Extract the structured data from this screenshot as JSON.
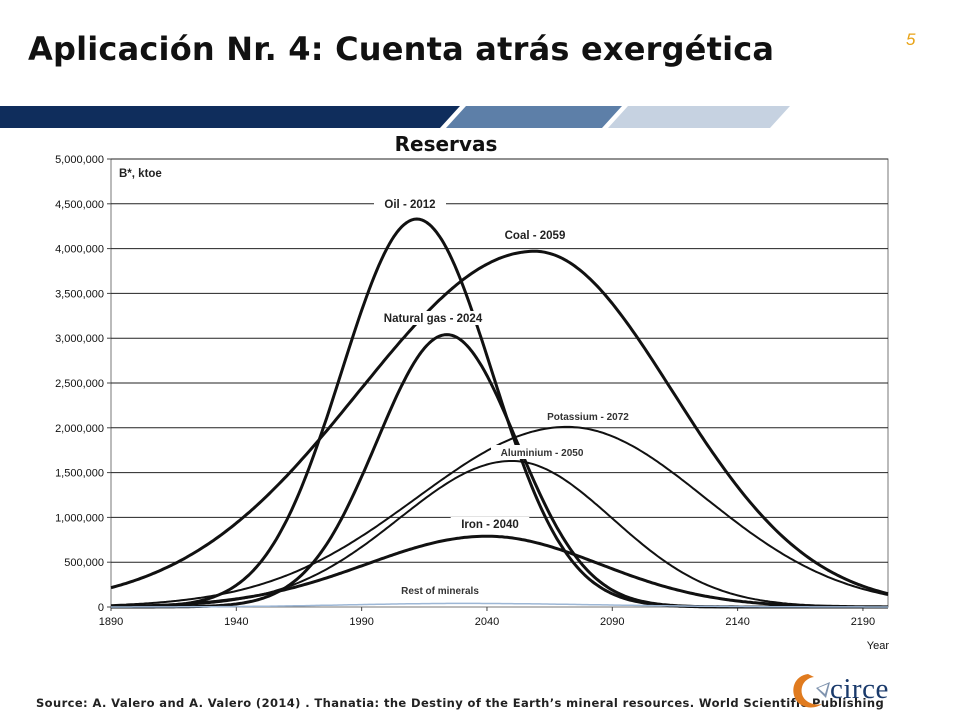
{
  "slide": {
    "title": "Aplicación Nr. 4: Cuenta atrás exergética",
    "page_number": "5",
    "source": "Source: A. Valero and A. Valero (2014) . Thanatia: the Destiny of the Earth’s mineral resources. World Scientific Publishing",
    "logo_text": "circe"
  },
  "colors": {
    "banner_dark": "#0f2d5c",
    "banner_mid": "#5d7fa8",
    "banner_light": "#c6d2e1",
    "accent": "#e8a317",
    "logo_orange": "#e07b1f"
  },
  "chart_data": {
    "type": "line",
    "title": "Reservas",
    "ylabel": "B*, ktoe",
    "xlabel": "Year",
    "xlim": [
      1890,
      2200
    ],
    "ylim": [
      0,
      5000000
    ],
    "x_ticks": [
      1890,
      1940,
      1990,
      2040,
      2090,
      2140,
      2190
    ],
    "y_ticks": [
      0,
      500000,
      1000000,
      1500000,
      2000000,
      2500000,
      3000000,
      3500000,
      4000000,
      4500000,
      5000000
    ],
    "y_tick_labels": [
      "0",
      "500,000",
      "1,000,000",
      "1,500,000",
      "2,000,000",
      "2,500,000",
      "3,000,000",
      "3,500,000",
      "4,000,000",
      "4,500,000",
      "5,000,000"
    ],
    "x_tick_labels": [
      "1890",
      "1940",
      "1990",
      "2040",
      "2090",
      "2140",
      "2190"
    ],
    "grid": "horizontal",
    "series": [
      {
        "name": "Oil - 2012",
        "peak_year": 2012,
        "peak": 4330000,
        "sigma_left": 30,
        "sigma_right": 30,
        "stroke": 3,
        "color": "#111111"
      },
      {
        "name": "Coal - 2059",
        "peak_year": 2059,
        "peak": 3970000,
        "sigma_left": 70,
        "sigma_right": 55,
        "stroke": 3,
        "color": "#111111"
      },
      {
        "name": "Natural gas - 2024",
        "peak_year": 2024,
        "peak": 3040000,
        "sigma_left": 28,
        "sigma_right": 28,
        "stroke": 3,
        "color": "#111111"
      },
      {
        "name": "Potassium - 2072",
        "peak_year": 2072,
        "peak": 2010000,
        "sigma_left": 60,
        "sigma_right": 55,
        "stroke": 2,
        "color": "#111111"
      },
      {
        "name": "Aluminium - 2050",
        "peak_year": 2050,
        "peak": 1630000,
        "sigma_left": 45,
        "sigma_right": 40,
        "stroke": 2,
        "color": "#111111"
      },
      {
        "name": "Iron - 2040",
        "peak_year": 2040,
        "peak": 790000,
        "sigma_left": 48,
        "sigma_right": 45,
        "stroke": 3,
        "color": "#111111"
      },
      {
        "name": "Rest of minerals",
        "peak_year": 2030,
        "peak": 40000,
        "sigma_left": 45,
        "sigma_right": 55,
        "stroke": 1.5,
        "color": "#9db7d6"
      }
    ]
  }
}
